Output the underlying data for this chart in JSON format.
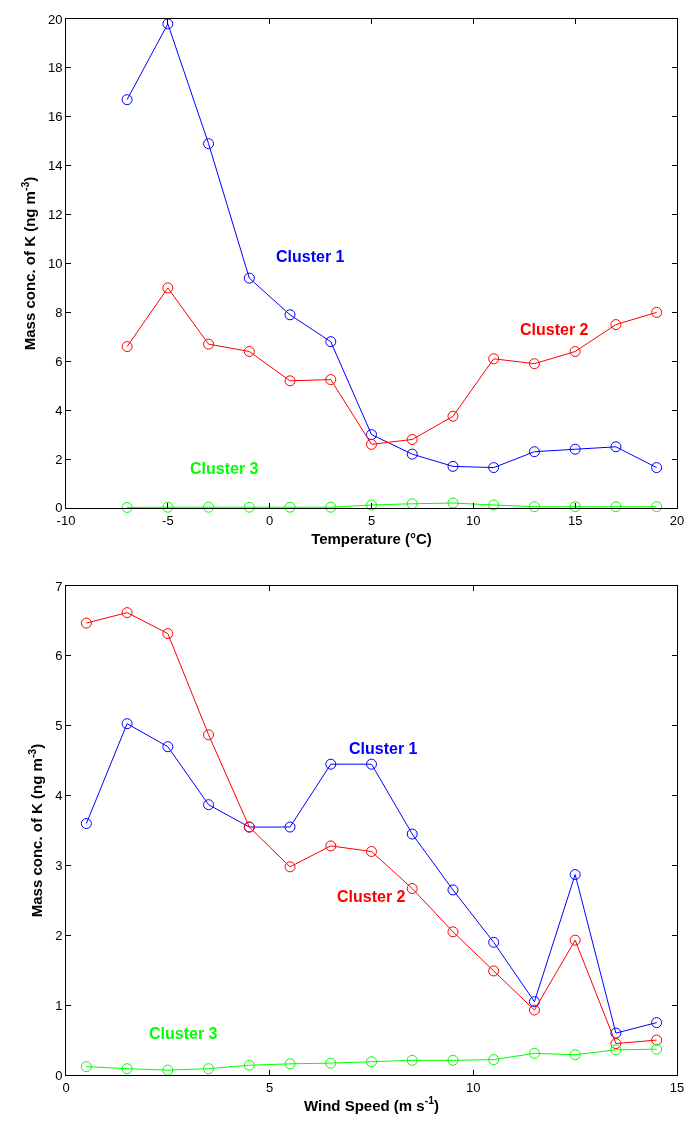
{
  "chart_data": [
    {
      "type": "line",
      "xlabel": "Temperature (°C)",
      "ylabel": "Mass conc. of K (ng m$^{-3}$)",
      "x": [
        -7,
        -5,
        -3,
        -1,
        1,
        3,
        5,
        7,
        9,
        11,
        13,
        15,
        17,
        19
      ],
      "series": [
        {
          "name": "Cluster 1",
          "color": "#0000ff",
          "values": [
            16.7,
            19.8,
            14.9,
            9.4,
            7.9,
            6.8,
            3.0,
            2.2,
            1.7,
            1.65,
            2.3,
            2.4,
            2.5,
            1.65
          ]
        },
        {
          "name": "Cluster 2",
          "color": "#ff0000",
          "values": [
            6.6,
            9.0,
            6.7,
            6.4,
            5.2,
            5.25,
            2.6,
            2.8,
            3.75,
            6.1,
            5.9,
            6.4,
            7.5,
            8.0
          ]
        },
        {
          "name": "Cluster 3",
          "color": "#00ff00",
          "values": [
            0.02,
            0.03,
            0.03,
            0.03,
            0.03,
            0.03,
            0.12,
            0.17,
            0.2,
            0.12,
            0.05,
            0.05,
            0.05,
            0.05
          ]
        }
      ],
      "xlim": [
        -10,
        20
      ],
      "xticks": [
        -10,
        -5,
        0,
        5,
        10,
        15,
        20
      ],
      "ylim": [
        0,
        20
      ],
      "yticks": [
        0,
        2,
        4,
        6,
        8,
        10,
        12,
        14,
        16,
        18,
        20
      ],
      "legend": false,
      "marker": "circle",
      "line_style": "solid"
    },
    {
      "type": "line",
      "xlabel": "Wind Speed (m s$^{-1}$)",
      "ylabel": "Mass conc. of K (ng m$^{-3}$)",
      "x": [
        0.5,
        1.5,
        2.5,
        3.5,
        4.5,
        5.5,
        6.5,
        7.5,
        8.5,
        9.5,
        10.5,
        11.5,
        12.5,
        13.5,
        14.5
      ],
      "series": [
        {
          "name": "Cluster 1",
          "color": "#0000ff",
          "values": [
            3.6,
            5.03,
            4.7,
            3.87,
            3.55,
            3.55,
            4.45,
            4.45,
            3.45,
            2.65,
            1.9,
            1.05,
            2.87,
            0.6,
            0.75
          ]
        },
        {
          "name": "Cluster 2",
          "color": "#ff0000",
          "values": [
            6.47,
            6.62,
            6.32,
            4.87,
            3.55,
            2.98,
            3.28,
            3.2,
            2.67,
            2.05,
            1.49,
            0.93,
            1.93,
            0.45,
            0.5
          ]
        },
        {
          "name": "Cluster 3",
          "color": "#00ff00",
          "values": [
            0.12,
            0.09,
            0.07,
            0.09,
            0.14,
            0.16,
            0.17,
            0.19,
            0.21,
            0.21,
            0.22,
            0.31,
            0.29,
            0.36,
            0.37
          ]
        }
      ],
      "xlim": [
        0,
        15
      ],
      "xticks": [
        0,
        5,
        10,
        15
      ],
      "ylim": [
        0,
        7
      ],
      "yticks": [
        0,
        1,
        2,
        3,
        4,
        5,
        6,
        7
      ],
      "legend": false,
      "marker": "circle",
      "line_style": "solid"
    }
  ]
}
